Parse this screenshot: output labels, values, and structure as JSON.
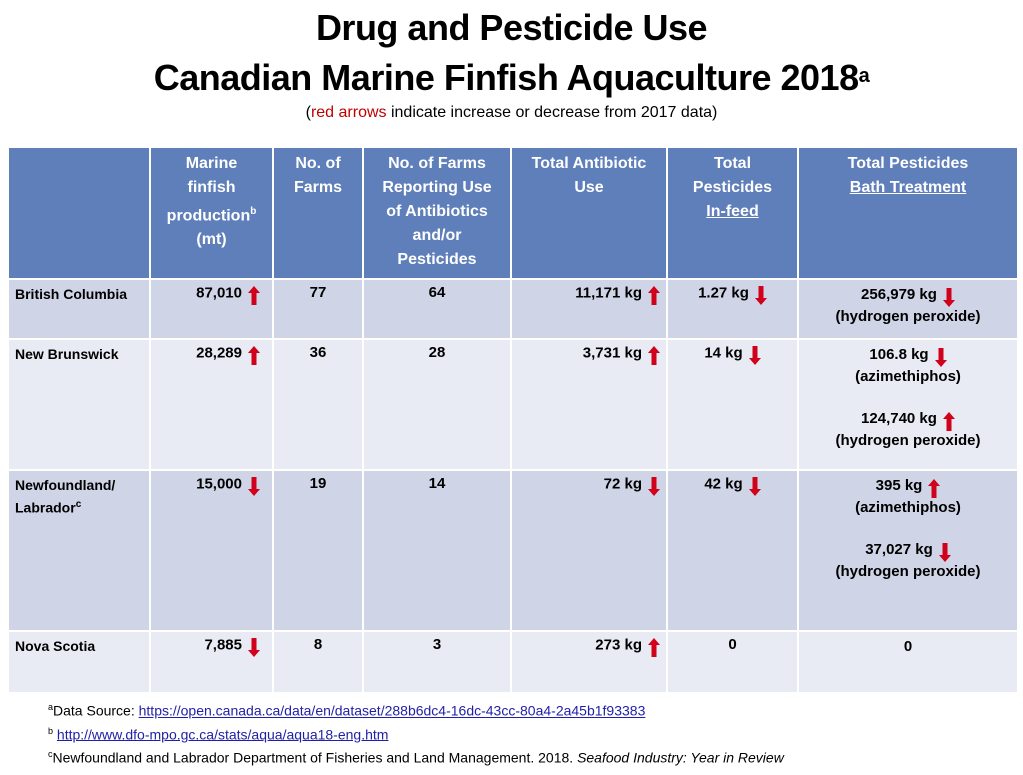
{
  "title": {
    "line1": "Drug and Pesticide Use",
    "line2": "Canadian Marine Finfish Aquaculture 2018",
    "line2_footnote": "a"
  },
  "subtitle": {
    "open_paren": "(",
    "red_text": "red arrows",
    "rest": " indicate increase or decrease from 2017 data)"
  },
  "colors": {
    "header_bg": "#5f7fba",
    "row_odd_bg": "#cfd5e6",
    "row_even_bg": "#e8ebf3",
    "arrow_red": "#d0021b",
    "link": "#1f1fa8"
  },
  "table": {
    "headers": {
      "province": "",
      "production_l1": "Marine",
      "production_l2": "finfish",
      "production_l3": "production",
      "production_fn": "b",
      "production_l4": "(mt)",
      "farms_l1": "No. of",
      "farms_l2": "Farms",
      "reporting_l1": "No. of Farms",
      "reporting_l2": "Reporting Use",
      "reporting_l3": "of Antibiotics",
      "reporting_l4": "and/or",
      "reporting_l5": "Pesticides",
      "antibiotic_l1": "Total Antibiotic",
      "antibiotic_l2": "Use",
      "infeed_l1": "Total",
      "infeed_l2": "Pesticides",
      "infeed_l3": "In-feed",
      "bath_l1": "Total Pesticides",
      "bath_l2": "Bath Treatment"
    },
    "rows": [
      {
        "province": "British Columbia",
        "province_fn": "",
        "production": "87,010",
        "production_trend": "up",
        "farms": "77",
        "reporting": "64",
        "antibiotic": "11,171 kg",
        "antibiotic_trend": "up",
        "infeed": "1.27 kg",
        "infeed_trend": "down",
        "bath": [
          {
            "amount": "256,979 kg",
            "trend": "down",
            "chemical": "(hydrogen peroxide)"
          }
        ]
      },
      {
        "province": "New Brunswick",
        "province_fn": "",
        "production": "28,289",
        "production_trend": "up",
        "farms": "36",
        "reporting": "28",
        "antibiotic": "3,731 kg",
        "antibiotic_trend": "up",
        "infeed": "14 kg",
        "infeed_trend": "down",
        "bath": [
          {
            "amount": "106.8 kg",
            "trend": "down",
            "chemical": "(azimethiphos)"
          },
          {
            "amount": "124,740 kg",
            "trend": "up",
            "chemical": "(hydrogen peroxide)"
          }
        ]
      },
      {
        "province": "Newfoundland/ Labrador",
        "province_fn": "c",
        "production": "15,000",
        "production_trend": "down",
        "farms": "19",
        "reporting": "14",
        "antibiotic": "72 kg",
        "antibiotic_trend": "down",
        "infeed": "42 kg",
        "infeed_trend": "down",
        "bath": [
          {
            "amount": "395 kg",
            "trend": "up",
            "chemical": "(azimethiphos)"
          },
          {
            "amount": "37,027 kg",
            "trend": "down",
            "chemical": "(hydrogen peroxide)"
          }
        ]
      },
      {
        "province": "Nova Scotia",
        "province_fn": "",
        "production": "7,885",
        "production_trend": "down",
        "farms": "8",
        "reporting": "3",
        "antibiotic": "273 kg",
        "antibiotic_trend": "up",
        "infeed": "0",
        "infeed_trend": "",
        "bath": [
          {
            "amount": "0",
            "trend": "",
            "chemical": ""
          }
        ]
      }
    ]
  },
  "footnotes": {
    "a_mark": "a",
    "a_label": "Data Source: ",
    "a_link": "https://open.canada.ca/data/en/dataset/288b6dc4-16dc-43cc-80a4-2a45b1f93383",
    "b_mark": "b",
    "b_link": "http://www.dfo-mpo.gc.ca/stats/aqua/aqua18-eng.htm",
    "c_mark": "c",
    "c_text": "Newfoundland and Labrador Department of Fisheries and Land Management. 2018. ",
    "c_italic": "Seafood Industry: Year in Review"
  }
}
